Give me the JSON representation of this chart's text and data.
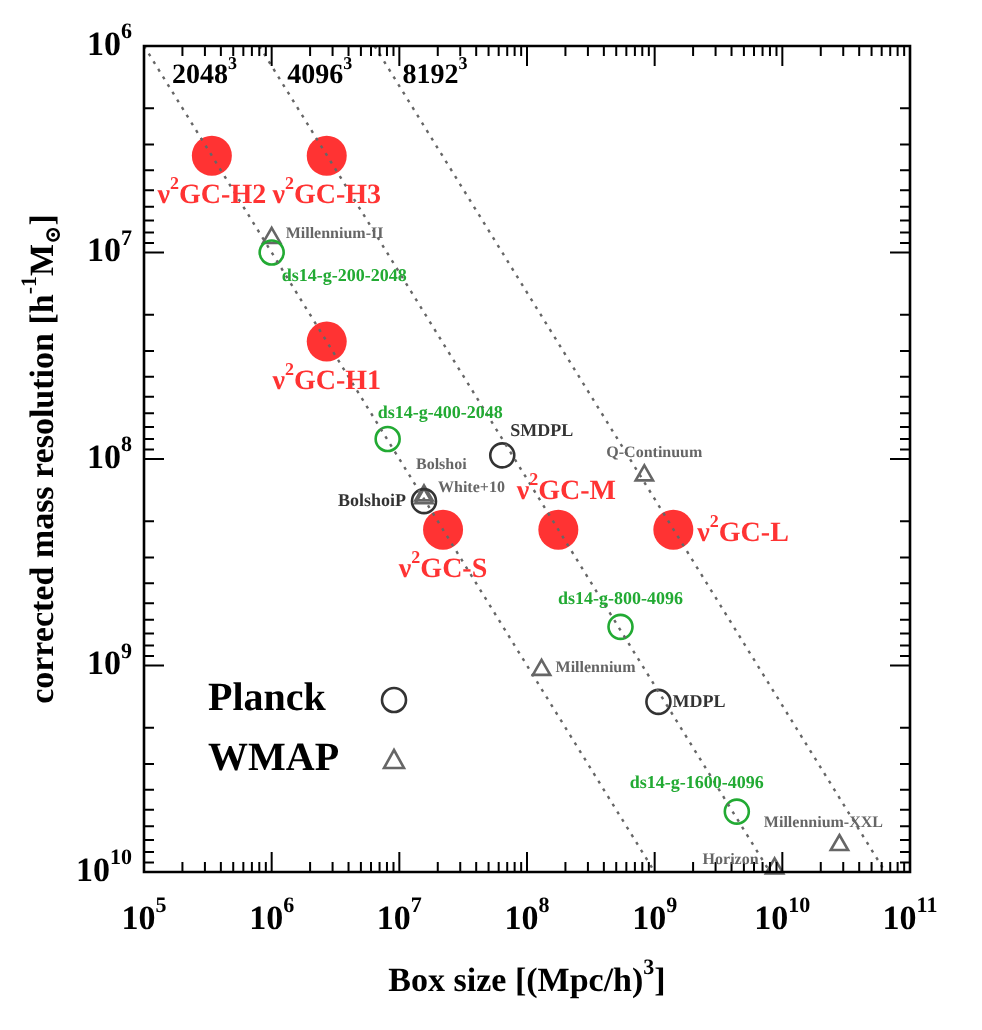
{
  "chart_data": {
    "type": "scatter",
    "xlabel": "Box size [(Mpc/h)$^{3}$]",
    "ylabel": "corrected mass resolution [h$^{-1}$M$_{⊙}$]",
    "log": "xy",
    "legend": "bottom left",
    "xlim": [
      100000,
      100000000000
    ],
    "ylim": [
      10000000000,
      1000000
    ],
    "xticks": [
      {
        "value": 100000,
        "label": "10$^{5}$"
      },
      {
        "value": 1000000,
        "label": "10$^{6}$"
      },
      {
        "value": 10000000,
        "label": "10$^{7}$"
      },
      {
        "value": 100000000,
        "label": "10$^{8}$"
      },
      {
        "value": 1000000000,
        "label": "10$^{9}$"
      },
      {
        "value": 10000000000,
        "label": "10$^{10}$"
      },
      {
        "value": 100000000000,
        "label": "10$^{11}$"
      }
    ],
    "yticks": [
      {
        "value": 1000000,
        "label": "10$^{6}$"
      },
      {
        "value": 10000000,
        "label": "10$^{7}$"
      },
      {
        "value": 100000000,
        "label": "10$^{8}$"
      },
      {
        "value": 1000000000,
        "label": "10$^{9}$"
      },
      {
        "value": 10000000000,
        "label": "10$^{10}$"
      }
    ],
    "series": [
      {
        "type": "line",
        "name": "2048$^{3}$",
        "color": "#666666",
        "line_style": "dotted",
        "marker": "none",
        "x": [
          100000,
          1000000000
        ],
        "values": [
          1000000,
          10000000000
        ]
      },
      {
        "type": "line",
        "name": "4096$^{3}$",
        "color": "#666666",
        "line_style": "dotted",
        "marker": "none",
        "x": [
          800000,
          8000000000
        ],
        "values": [
          1000000,
          10000000000
        ]
      },
      {
        "type": "line",
        "name": "8192$^{3}$",
        "color": "#666666",
        "line_style": "dotted",
        "marker": "none",
        "x": [
          6400000,
          64000000000
        ],
        "values": [
          1000000,
          10000000000
        ]
      },
      {
        "type": "bubble",
        "color": "#ff3333",
        "x": [
          340000,
          2700000,
          2700000,
          22000000,
          176000000,
          1400000000
        ],
        "values": [
          3400000,
          3400000,
          27000000,
          220000000,
          220000000,
          220000000
        ],
        "sizes": [
          1,
          1,
          1,
          1,
          1,
          1
        ]
      },
      {
        "type": "scatter",
        "color": "#22aa33",
        "marker": "circle",
        "x": [
          1000000,
          8100000,
          540000000,
          4400000000
        ],
        "values": [
          10000000,
          80000000,
          650000000,
          5100000000
        ]
      },
      {
        "type": "scatter",
        "name": "Planck",
        "color": "#333333",
        "marker": "circle",
        "x": [
          64000000,
          15600000,
          1070000000
        ],
        "values": [
          96000000,
          160000000,
          1500000000
        ]
      },
      {
        "type": "scatter",
        "name": "WMAP",
        "color": "#666666",
        "marker": "triangle",
        "x": [
          1000000,
          15600000,
          15600000,
          830000000,
          130000000,
          28000000000,
          8700000000
        ],
        "values": [
          8500000,
          150000000,
          155000000,
          120000000,
          1050000000,
          7400000000,
          9600000000
        ]
      }
    ],
    "annotations": [
      {
        "text": "ν$^{2}$GC-H2",
        "x": 340000,
        "y": 3400000
      },
      {
        "text": "ν$^{2}$GC-H3",
        "x": 2700000,
        "y": 3400000
      },
      {
        "text": "ν$^{2}$GC-H1",
        "x": 2700000,
        "y": 27000000
      },
      {
        "text": "ν$^{2}$GC-S",
        "x": 22000000,
        "y": 220000000
      },
      {
        "text": "ν$^{2}$GC-M",
        "x": 176000000,
        "y": 220000000
      },
      {
        "text": "ν$^{2}$GC-L",
        "x": 1400000000,
        "y": 220000000
      },
      {
        "text": "Millennium-II",
        "x": 1000000,
        "y": 8500000
      },
      {
        "text": "ds14-g-200-2048",
        "x": 1000000,
        "y": 10000000
      },
      {
        "text": "ds14-g-400-2048",
        "x": 8100000,
        "y": 80000000
      },
      {
        "text": "SMDPL",
        "x": 64000000,
        "y": 96000000
      },
      {
        "text": "Bolshoi",
        "x": 15600000,
        "y": 150000000
      },
      {
        "text": "White+10",
        "x": 15600000,
        "y": 155000000
      },
      {
        "text": "BolshoiP",
        "x": 15600000,
        "y": 160000000
      },
      {
        "text": "Q-Continuum",
        "x": 830000000,
        "y": 120000000
      },
      {
        "text": "ds14-g-800-4096",
        "x": 540000000,
        "y": 650000000
      },
      {
        "text": "Millennium",
        "x": 130000000,
        "y": 1050000000
      },
      {
        "text": "MDPL",
        "x": 1070000000,
        "y": 1500000000
      },
      {
        "text": "ds14-g-1600-4096",
        "x": 4400000000,
        "y": 5100000000
      },
      {
        "text": "Millennium-XXL",
        "x": 28000000000,
        "y": 7400000000
      },
      {
        "text": "Horizon",
        "x": 8700000000,
        "y": 9600000000
      }
    ]
  }
}
